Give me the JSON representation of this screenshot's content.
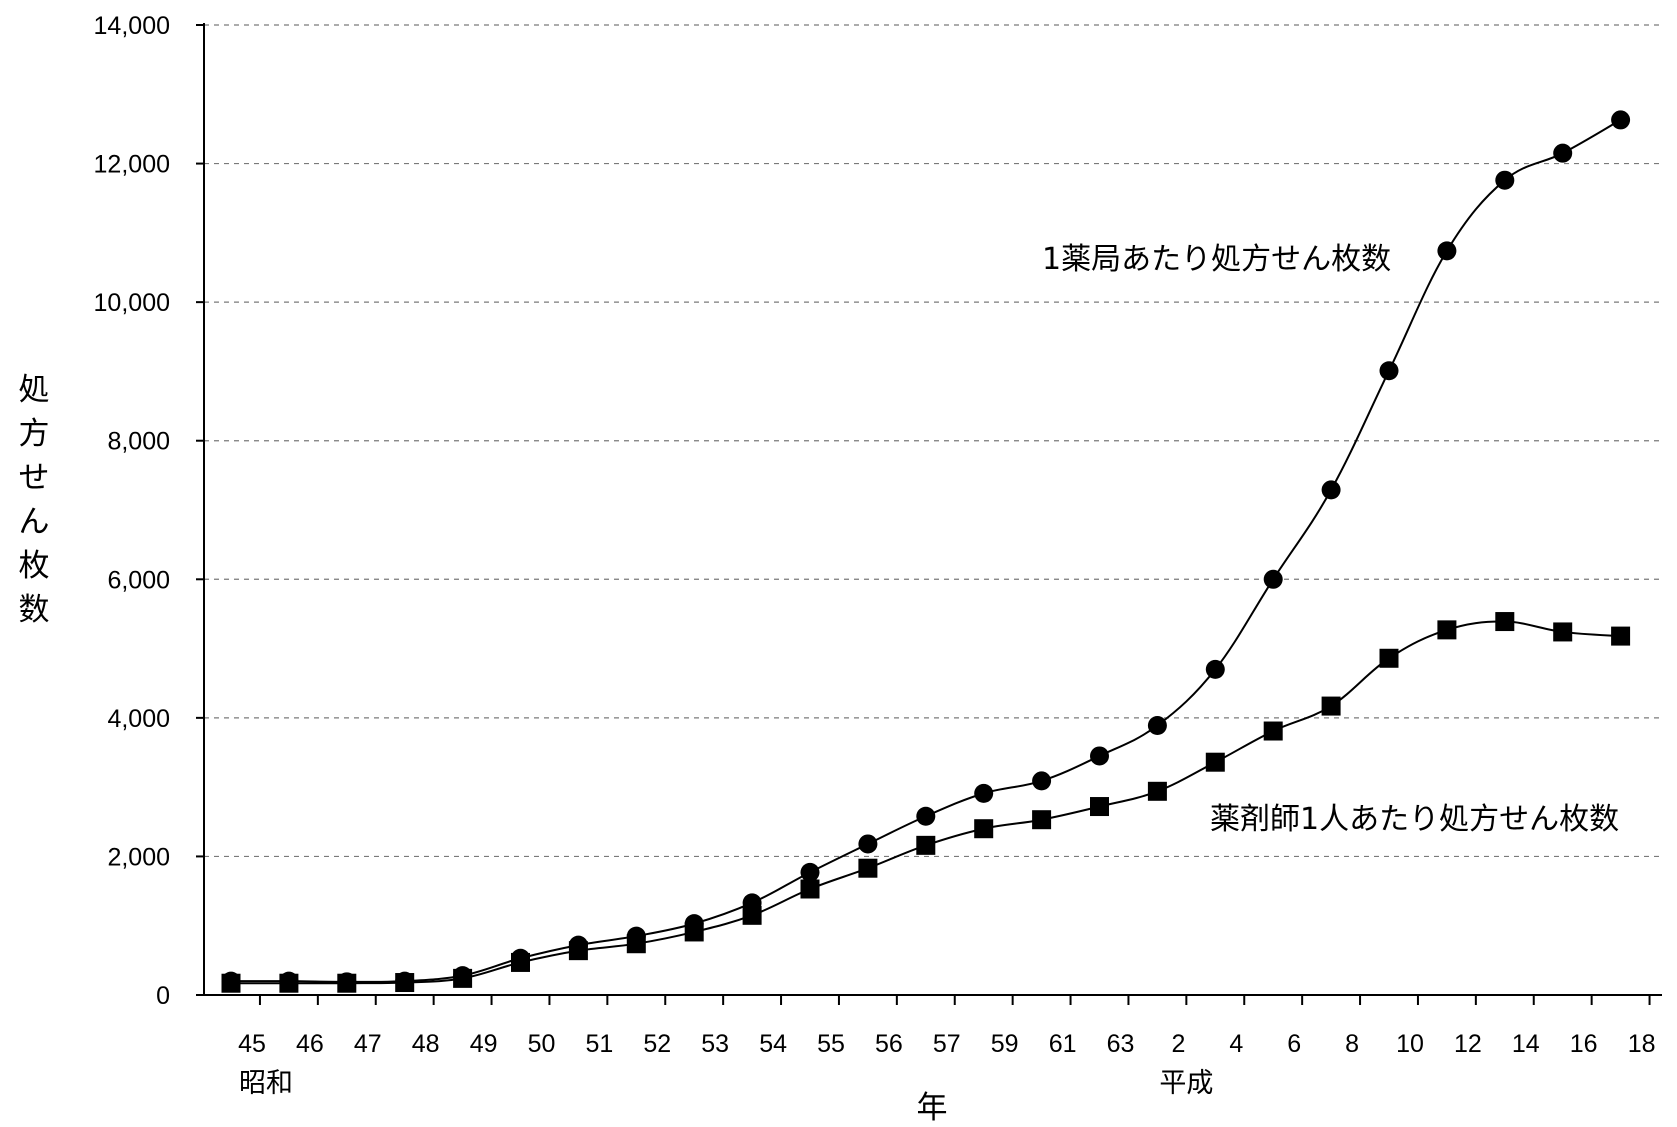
{
  "chart_data": {
    "type": "line",
    "title": "",
    "xlabel": "年",
    "ylabel": "処方せん枚数",
    "ylim": [
      0,
      14000
    ],
    "yticks": [
      0,
      2000,
      4000,
      6000,
      8000,
      10000,
      12000,
      14000
    ],
    "ytick_labels": [
      "0",
      "2,000",
      "4,000",
      "6,000",
      "8,000",
      "10,000",
      "12,000",
      "14,000"
    ],
    "categories": [
      "45",
      "46",
      "47",
      "48",
      "49",
      "50",
      "51",
      "52",
      "53",
      "54",
      "55",
      "56",
      "57",
      "59",
      "61",
      "63",
      "2",
      "4",
      "6",
      "8",
      "10",
      "12",
      "14",
      "16",
      "18"
    ],
    "era_labels": [
      {
        "label": "昭和",
        "at_category": 0
      },
      {
        "label": "平成",
        "at_category": 16
      }
    ],
    "grid": true,
    "series": [
      {
        "name": "1薬局あたり処方せん枚数",
        "marker": "circle",
        "values": [
          200,
          200,
          190,
          200,
          280,
          530,
          720,
          850,
          1030,
          1330,
          1770,
          2180,
          2580,
          2910,
          3090,
          3450,
          3890,
          4700,
          6000,
          7290,
          9010,
          10740,
          11760,
          12150,
          12630
        ]
      },
      {
        "name": "薬剤師1人あたり処方せん枚数",
        "marker": "square",
        "values": [
          170,
          170,
          170,
          180,
          240,
          470,
          640,
          740,
          910,
          1150,
          1530,
          1830,
          2160,
          2400,
          2530,
          2720,
          2940,
          3360,
          3810,
          4170,
          4860,
          5270,
          5390,
          5240,
          5180
        ]
      }
    ]
  }
}
